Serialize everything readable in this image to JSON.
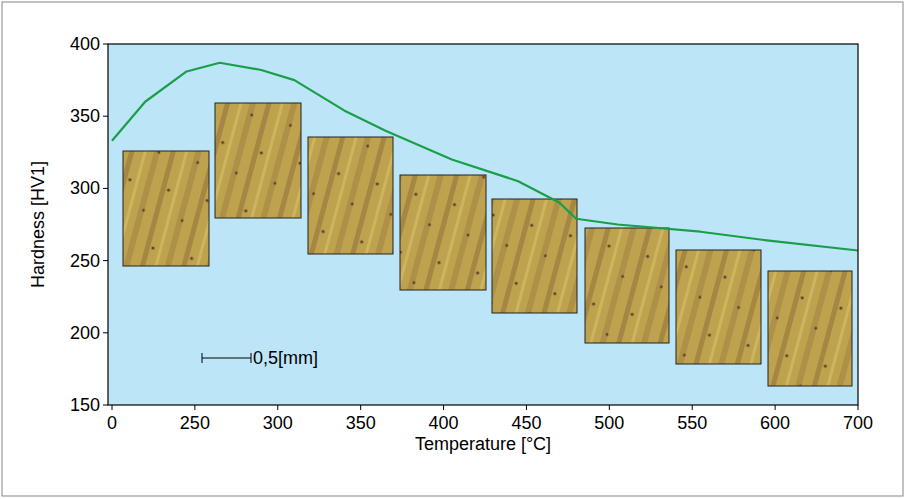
{
  "chart_data": {
    "type": "line",
    "x_label": "Temperature [°C]",
    "y_label": "Hardness [HV1]",
    "x": [
      0,
      100,
      225,
      265,
      290,
      310,
      340,
      365,
      405,
      445,
      470,
      480,
      505,
      555,
      595,
      700
    ],
    "values": [
      333,
      360,
      381,
      387,
      382,
      375,
      354,
      340,
      320,
      305,
      290,
      279,
      275,
      270,
      264,
      257
    ],
    "color": "#1a9e4a",
    "xlim": [
      0,
      700
    ],
    "ylim": [
      150,
      400
    ],
    "xticks": [
      0,
      250,
      300,
      350,
      400,
      450,
      500,
      550,
      600,
      700
    ],
    "yticks": [
      150,
      200,
      250,
      300,
      350,
      400
    ],
    "grid": false,
    "annotations": [
      {
        "text": "0,5[mm]"
      }
    ]
  }
}
